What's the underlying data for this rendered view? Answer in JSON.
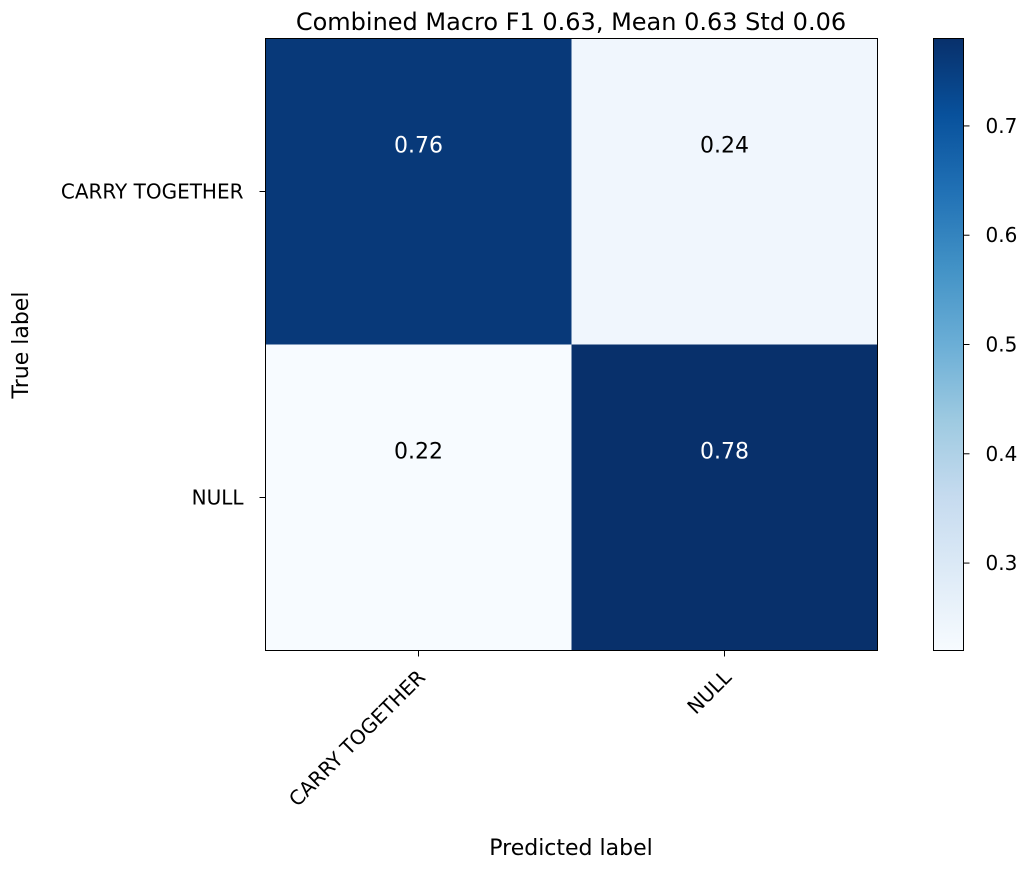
{
  "chart_data": {
    "type": "heatmap",
    "title": "Combined Macro F1 0.63, Mean 0.63 Std 0.06",
    "xlabel": "Predicted label",
    "ylabel": "True label",
    "x_categories": [
      "CARRY TOGETHER",
      "NULL"
    ],
    "y_categories": [
      "CARRY TOGETHER",
      "NULL"
    ],
    "values": [
      [
        0.76,
        0.24
      ],
      [
        0.22,
        0.78
      ]
    ],
    "value_labels": [
      [
        "0.76",
        "0.24"
      ],
      [
        "0.22",
        "0.78"
      ]
    ],
    "colormap": "Blues",
    "colorbar": {
      "range": [
        0.22,
        0.78
      ],
      "ticks": [
        0.3,
        0.4,
        0.5,
        0.6,
        0.7
      ],
      "tick_labels": [
        "0.3",
        "0.4",
        "0.5",
        "0.6",
        "0.7"
      ]
    },
    "colors": {
      "low": "#f7fbff",
      "high": "#08306b",
      "light_text": "#ffffff",
      "dark_text": "#000000"
    }
  }
}
